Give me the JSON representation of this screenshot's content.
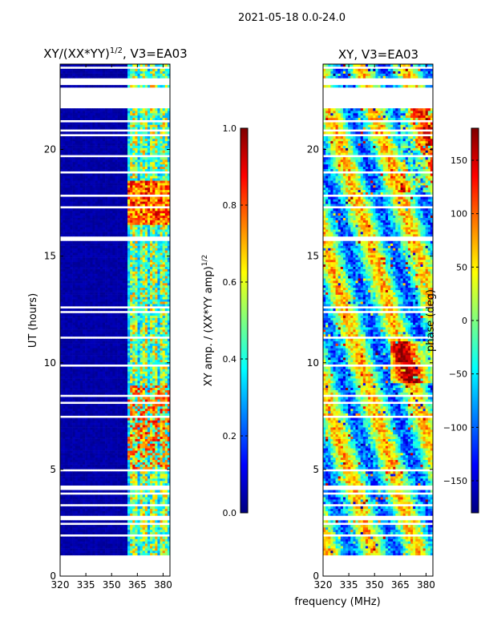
{
  "suptitle": "2021-05-18 0.0-24.0",
  "colors": {
    "jet": [
      "#00007f",
      "#0000ff",
      "#007fff",
      "#00ffff",
      "#7fff7f",
      "#ffff00",
      "#ff7f00",
      "#ff0000",
      "#7f0000"
    ],
    "gap": "#ffffff",
    "axis": "#000000"
  },
  "chart_data": [
    {
      "type": "heatmap",
      "name": "amplitude",
      "title_main": "XY/(XX*YY)",
      "title_exp": "1/2",
      "title_tail": ", V3=EA03",
      "xlabel": "",
      "ylabel": "UT (hours)",
      "xlim": [
        320,
        384
      ],
      "ylim": [
        0,
        24
      ],
      "xticks": [
        320,
        335,
        350,
        365,
        380
      ],
      "yticks": [
        0,
        5,
        10,
        15,
        20
      ],
      "band_edge_mhz": 359,
      "colorbar": {
        "label_main": "XY amp. / (XX*YY amp)",
        "label_exp": "1/2",
        "range": [
          0.0,
          1.0
        ],
        "ticks": [
          {
            "v": 0.0,
            "label": "0.0"
          },
          {
            "v": 0.2,
            "label": "0.2"
          },
          {
            "v": 0.4,
            "label": "0.4"
          },
          {
            "v": 0.6,
            "label": "0.6"
          },
          {
            "v": 0.8,
            "label": "0.8"
          },
          {
            "v": 1.0,
            "label": "1.0"
          }
        ]
      }
    },
    {
      "type": "heatmap",
      "name": "phase",
      "title_main": "XY, V3=EA03",
      "xlabel": "frequency (MHz)",
      "ylabel": "",
      "xlim": [
        320,
        384
      ],
      "ylim": [
        0,
        24
      ],
      "xticks": [
        320,
        335,
        350,
        365,
        380
      ],
      "yticks": [
        0,
        5,
        10,
        15,
        20
      ],
      "colorbar": {
        "label": "phase (deg)",
        "range": [
          -180,
          180
        ],
        "ticks": [
          {
            "v": -150,
            "label": "−150"
          },
          {
            "v": -100,
            "label": "−100"
          },
          {
            "v": -50,
            "label": "−50"
          },
          {
            "v": 0,
            "label": "0"
          },
          {
            "v": 50,
            "label": "50"
          },
          {
            "v": 100,
            "label": "100"
          },
          {
            "v": 150,
            "label": "150"
          }
        ]
      }
    }
  ]
}
